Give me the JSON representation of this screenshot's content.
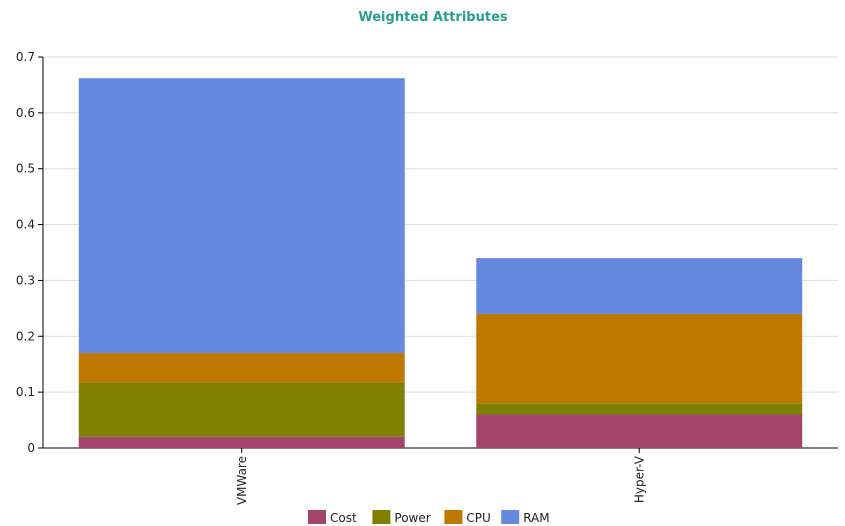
{
  "chart_data": {
    "type": "bar",
    "stacked": true,
    "title": "Weighted Attributes",
    "title_color": "#2a9d8f",
    "categories": [
      "VMWare",
      "Hyper-V"
    ],
    "series": [
      {
        "name": "Cost",
        "color": "#a3456b",
        "values": [
          0.02,
          0.06
        ]
      },
      {
        "name": "Power",
        "color": "#7f7f00",
        "values": [
          0.097,
          0.02
        ]
      },
      {
        "name": "CPU",
        "color": "#bf7800",
        "values": [
          0.053,
          0.16
        ]
      },
      {
        "name": "RAM",
        "color": "#6689e0",
        "values": [
          0.492,
          0.1
        ]
      }
    ],
    "xlabel": "",
    "ylabel": "",
    "ylim": [
      0,
      0.7
    ],
    "yticks": [
      "0",
      "0.1",
      "0.2",
      "0.3",
      "0.4",
      "0.5",
      "0.6",
      "0.7"
    ],
    "grid": true,
    "legend_position": "bottom-center"
  }
}
